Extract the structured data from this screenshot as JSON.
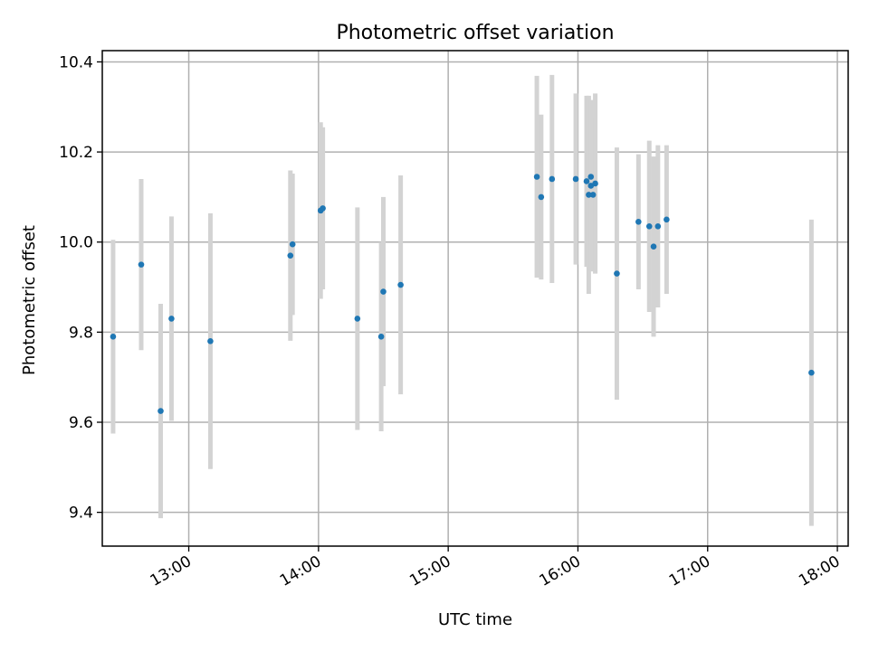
{
  "chart_data": {
    "type": "scatter",
    "title": "Photometric offset variation",
    "xlabel": "UTC time",
    "ylabel": "Photometric offset",
    "xlim": [
      "12:20",
      "18:05"
    ],
    "ylim": [
      9.325,
      10.425
    ],
    "grid": true,
    "marker_color": "#1f77b4",
    "errorbar_color": "#d3d3d3",
    "x_ticks": [
      "13:00",
      "14:00",
      "15:00",
      "16:00",
      "17:00",
      "18:00"
    ],
    "y_ticks": [
      9.4,
      9.6,
      9.8,
      10.0,
      10.2,
      10.4
    ],
    "y_tick_labels": [
      "9.4",
      "9.6",
      "9.8",
      "10.0",
      "10.2",
      "10.4"
    ],
    "points": [
      {
        "t": "12:25",
        "y": 9.79,
        "err": 0.215
      },
      {
        "t": "12:38",
        "y": 9.95,
        "err": 0.19
      },
      {
        "t": "12:47",
        "y": 9.625,
        "err": 0.238
      },
      {
        "t": "12:52",
        "y": 9.83,
        "err": 0.227
      },
      {
        "t": "13:10",
        "y": 9.78,
        "err": 0.284
      },
      {
        "t": "13:47",
        "y": 9.97,
        "err": 0.189
      },
      {
        "t": "13:48",
        "y": 9.995,
        "err": 0.157
      },
      {
        "t": "14:01",
        "y": 10.07,
        "err": 0.196
      },
      {
        "t": "14:02",
        "y": 10.075,
        "err": 0.18
      },
      {
        "t": "14:18",
        "y": 9.83,
        "err": 0.247
      },
      {
        "t": "14:29",
        "y": 9.79,
        "err": 0.21
      },
      {
        "t": "14:30",
        "y": 9.89,
        "err": 0.21
      },
      {
        "t": "14:38",
        "y": 9.905,
        "err": 0.243
      },
      {
        "t": "15:41",
        "y": 10.145,
        "err": 0.224
      },
      {
        "t": "15:43",
        "y": 10.1,
        "err": 0.183
      },
      {
        "t": "15:48",
        "y": 10.14,
        "err": 0.231
      },
      {
        "t": "15:59",
        "y": 10.14,
        "err": 0.19
      },
      {
        "t": "16:04",
        "y": 10.135,
        "err": 0.19
      },
      {
        "t": "16:05",
        "y": 10.105,
        "err": 0.22
      },
      {
        "t": "16:06",
        "y": 10.125,
        "err": 0.19
      },
      {
        "t": "16:06",
        "y": 10.145,
        "err": 0.17
      },
      {
        "t": "16:07",
        "y": 10.105,
        "err": 0.17
      },
      {
        "t": "16:08",
        "y": 10.13,
        "err": 0.2
      },
      {
        "t": "16:18",
        "y": 9.93,
        "err": 0.28
      },
      {
        "t": "16:28",
        "y": 10.045,
        "err": 0.15
      },
      {
        "t": "16:33",
        "y": 10.035,
        "err": 0.19
      },
      {
        "t": "16:35",
        "y": 9.99,
        "err": 0.2
      },
      {
        "t": "16:37",
        "y": 10.035,
        "err": 0.18
      },
      {
        "t": "16:41",
        "y": 10.05,
        "err": 0.165
      },
      {
        "t": "17:48",
        "y": 9.71,
        "err": 0.34
      }
    ]
  }
}
